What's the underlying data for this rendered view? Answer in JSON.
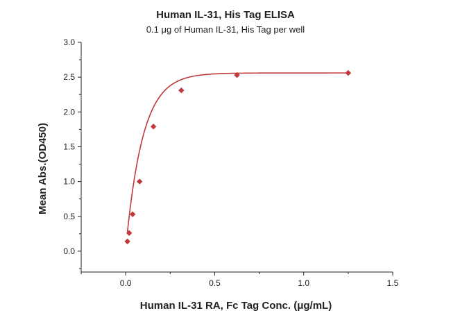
{
  "chart_data": {
    "type": "scatter",
    "title": "Human IL-31, His Tag ELISA",
    "subtitle": "0.1 μg of Human IL-31, His Tag per well",
    "xlabel": "Human IL-31 RA, Fc Tag Conc. (μg/mL)",
    "ylabel": "Mean Abs.(OD450)",
    "xlim": [
      -0.25,
      1.5
    ],
    "ylim": [
      -0.3,
      3.0
    ],
    "x_ticks": [
      0.0,
      0.5,
      1.0,
      1.5
    ],
    "x_tick_labels": [
      "0.0",
      "0.5",
      "1.0",
      "1.5"
    ],
    "y_ticks": [
      0.0,
      0.5,
      1.0,
      1.5,
      2.0,
      2.5,
      3.0
    ],
    "y_tick_labels": [
      "0.0",
      "0.5",
      "1.0",
      "1.5",
      "2.0",
      "2.5",
      "3.0"
    ],
    "grid": false,
    "colors": {
      "series": "#c0393b",
      "axis": "#222222"
    },
    "series": [
      {
        "marker": "diamond",
        "x": [
          0.0098,
          0.0195,
          0.039,
          0.078,
          0.156,
          0.3125,
          0.625,
          1.25
        ],
        "y": [
          0.14,
          0.26,
          0.53,
          1.0,
          1.79,
          2.31,
          2.53,
          2.56
        ]
      }
    ],
    "fit_curve": {
      "model": "saturation",
      "top": 2.56,
      "bottom": 0.03,
      "rate": 10.5
    }
  }
}
